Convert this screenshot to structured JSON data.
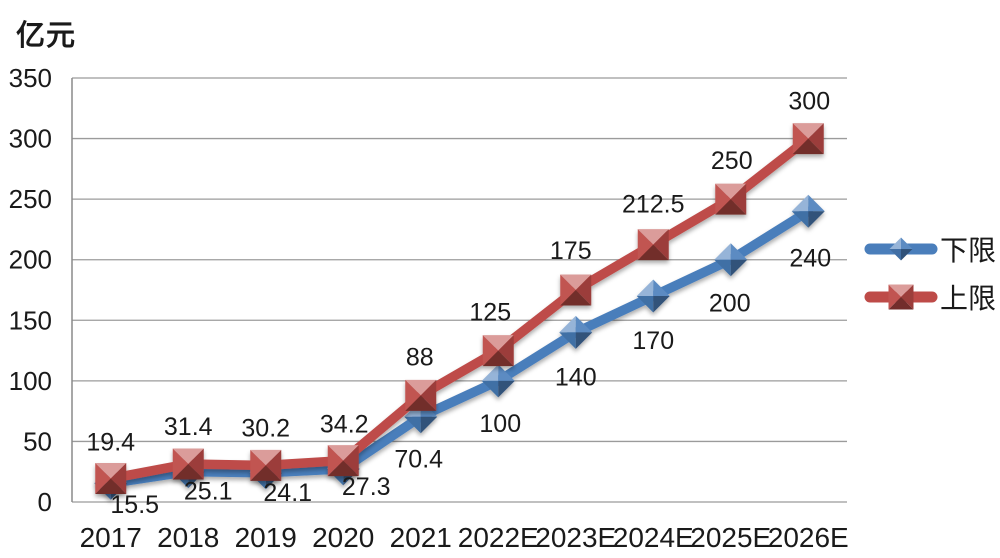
{
  "chart": {
    "unit_label": "亿元"
  },
  "chart_data": {
    "type": "line",
    "title": "",
    "unit_label": "亿元",
    "xlabel": "",
    "ylabel": "亿元",
    "categories": [
      "2017",
      "2018",
      "2019",
      "2020",
      "2021",
      "2022E",
      "2023E",
      "2024E",
      "2025E",
      "2026E"
    ],
    "series": [
      {
        "name": "下限",
        "color": "#4A7EBB",
        "marker": "diamond",
        "label_position": "below",
        "values": [
          15.5,
          25.1,
          24.1,
          27.3,
          70.4,
          100,
          140,
          170,
          200,
          240
        ]
      },
      {
        "name": "上限",
        "color": "#BE4B48",
        "marker": "square",
        "label_position": "above",
        "values": [
          19.4,
          31.4,
          30.2,
          34.2,
          88,
          125,
          175,
          212.5,
          250,
          300
        ]
      }
    ],
    "y_axis": {
      "min": 0,
      "max": 350,
      "step": 50,
      "tick_labels": [
        "0",
        "50",
        "100",
        "150",
        "200",
        "250",
        "300",
        "350"
      ]
    },
    "grid": true,
    "legend_position": "right",
    "colors": {
      "grid_line": "#9b9b9b",
      "axis_line": "#8a8a8a",
      "text": "#1a1a1a"
    },
    "label_offsets": {
      "下限": [
        [
          24,
          30
        ],
        [
          20,
          28
        ],
        [
          22,
          28
        ],
        [
          23,
          26
        ],
        [
          -2,
          51
        ],
        [
          2,
          51
        ],
        [
          0,
          53
        ],
        [
          0,
          53
        ],
        [
          -1,
          52
        ],
        [
          2,
          55
        ]
      ],
      "上限": [
        [
          0,
          -28
        ],
        [
          0,
          -29
        ],
        [
          0,
          -29
        ],
        [
          1,
          -28
        ],
        [
          -1,
          -30
        ],
        [
          -8,
          -30
        ],
        [
          -5,
          -31
        ],
        [
          0,
          -32
        ],
        [
          1,
          -30
        ],
        [
          1,
          -29
        ]
      ]
    }
  }
}
